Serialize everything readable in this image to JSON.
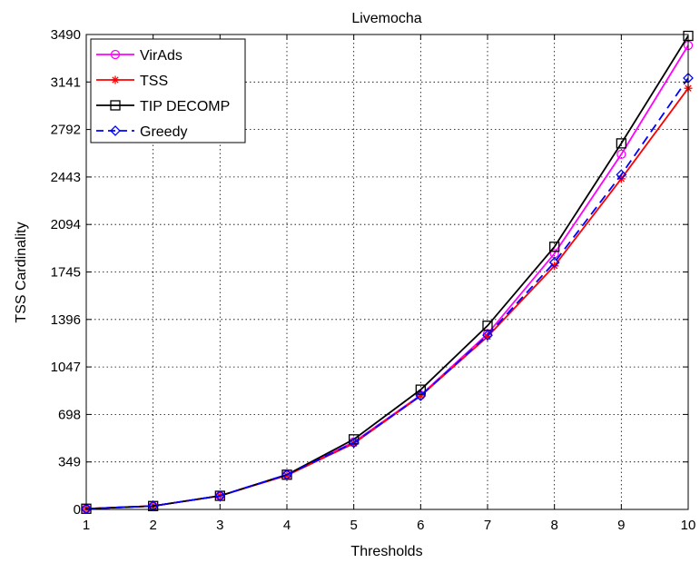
{
  "chart_data": {
    "type": "line",
    "title": "Livemocha",
    "xlabel": "Thresholds",
    "ylabel": "TSS Cardinality",
    "x": [
      1,
      2,
      3,
      4,
      5,
      6,
      7,
      8,
      9,
      10
    ],
    "xlim": [
      1,
      10
    ],
    "ylim": [
      0,
      3490
    ],
    "xticks": [
      "1",
      "2",
      "3",
      "4",
      "5",
      "6",
      "7",
      "8",
      "9",
      "10"
    ],
    "yticks": [
      "0",
      "349",
      "698",
      "1047",
      "1396",
      "1745",
      "2094",
      "2443",
      "2792",
      "3141",
      "3490"
    ],
    "grid": true,
    "legend_position": "top-left",
    "series": [
      {
        "name": "VirAds",
        "color": "#ff00ff",
        "marker": "circle",
        "dash": "solid",
        "values": [
          5,
          25,
          100,
          255,
          495,
          840,
          1290,
          1880,
          2610,
          3410
        ]
      },
      {
        "name": "TSS",
        "color": "#ff0000",
        "marker": "asterisk",
        "dash": "solid",
        "values": [
          5,
          25,
          100,
          250,
          485,
          835,
          1270,
          1790,
          2430,
          3095
        ]
      },
      {
        "name": "TIP DECOMP",
        "color": "#000000",
        "marker": "square",
        "dash": "solid",
        "values": [
          5,
          25,
          100,
          255,
          515,
          880,
          1350,
          1930,
          2690,
          3480
        ]
      },
      {
        "name": "Greedy",
        "color": "#0000ff",
        "marker": "diamond",
        "dash": "dashed",
        "values": [
          5,
          25,
          100,
          255,
          490,
          835,
          1280,
          1815,
          2460,
          3170
        ]
      }
    ]
  }
}
